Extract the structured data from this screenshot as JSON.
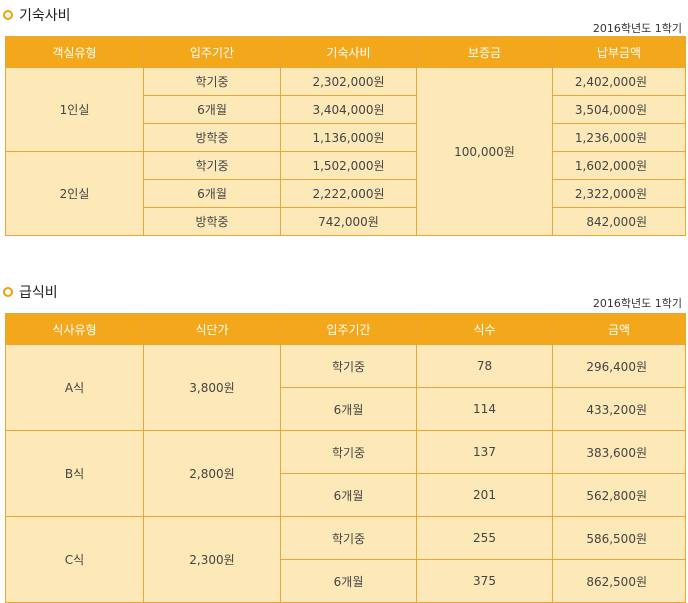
{
  "dorm": {
    "title": "기숙사비",
    "term": "2016학년도 1학기",
    "headers": [
      "객실유형",
      "입주기간",
      "기숙사비",
      "보증금",
      "납부금액"
    ],
    "deposit": "100,000원",
    "groups": [
      {
        "room_type": "1인실",
        "rows": [
          {
            "period": "학기중",
            "fee": "2,302,000원",
            "total": "2,402,000원"
          },
          {
            "period": "6개월",
            "fee": "3,404,000원",
            "total": "3,504,000원"
          },
          {
            "period": "방학중",
            "fee": "1,136,000원",
            "total": "1,236,000원"
          }
        ]
      },
      {
        "room_type": "2인실",
        "rows": [
          {
            "period": "학기중",
            "fee": "1,502,000원",
            "total": "1,602,000원"
          },
          {
            "period": "6개월",
            "fee": "2,222,000원",
            "total": "2,322,000원"
          },
          {
            "period": "방학중",
            "fee": "742,000원",
            "total": "842,000원"
          }
        ]
      }
    ]
  },
  "meal": {
    "title": "급식비",
    "term": "2016학년도 1학기",
    "headers": [
      "식사유형",
      "식단가",
      "입주기간",
      "식수",
      "금액"
    ],
    "groups": [
      {
        "meal_type": "A식",
        "unit_price": "3,800원",
        "rows": [
          {
            "period": "학기중",
            "count": "78",
            "amount": "296,400원"
          },
          {
            "period": "6개월",
            "count": "114",
            "amount": "433,200원"
          }
        ]
      },
      {
        "meal_type": "B식",
        "unit_price": "2,800원",
        "rows": [
          {
            "period": "학기중",
            "count": "137",
            "amount": "383,600원"
          },
          {
            "period": "6개월",
            "count": "201",
            "amount": "562,800원"
          }
        ]
      },
      {
        "meal_type": "C식",
        "unit_price": "2,300원",
        "rows": [
          {
            "period": "학기중",
            "count": "255",
            "amount": "586,500원"
          },
          {
            "period": "6개월",
            "count": "375",
            "amount": "862,500원"
          }
        ]
      }
    ]
  }
}
